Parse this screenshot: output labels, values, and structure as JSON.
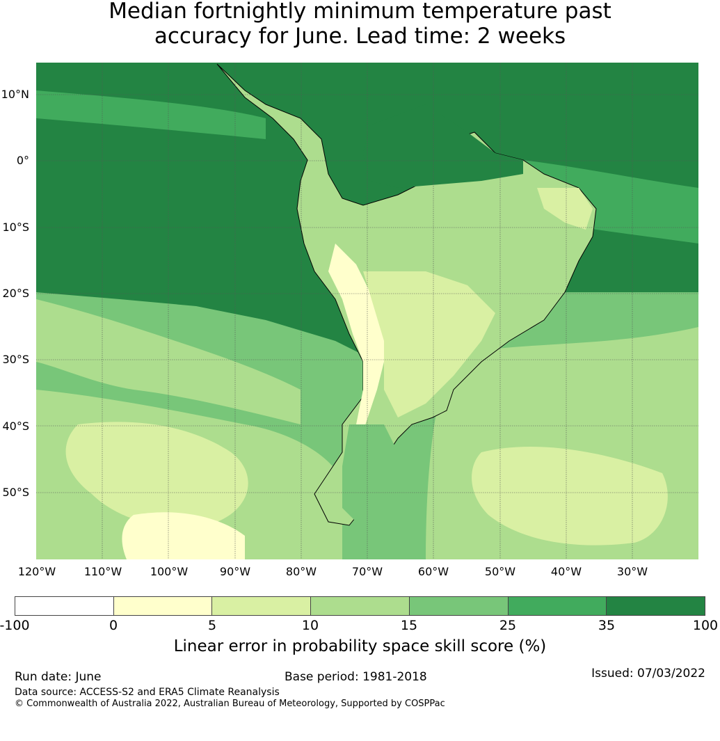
{
  "title": {
    "line1": "Median fortnightly minimum temperature past",
    "line2": "accuracy for June. Lead time: 2 weeks"
  },
  "map": {
    "lat_labels": [
      "10°N",
      "0°",
      "10°S",
      "20°S",
      "30°S",
      "40°S",
      "50°S"
    ],
    "lon_labels": [
      "120°W",
      "110°W",
      "100°W",
      "90°W",
      "80°W",
      "70°W",
      "60°W",
      "50°W",
      "40°W",
      "30°W"
    ],
    "region": "South America",
    "gridlines": true
  },
  "colorbar": {
    "ticks": [
      "-100",
      "0",
      "5",
      "10",
      "15",
      "25",
      "35",
      "100"
    ],
    "colors": [
      "#ffffff",
      "#ffffcc",
      "#d9f0a3",
      "#addd8e",
      "#78c679",
      "#41ab5d",
      "#238443"
    ],
    "label": "Linear error in probability space skill score (%)"
  },
  "footer": {
    "run_date": "Run date: June",
    "base_period": "Base period: 1981-2018",
    "issued": "Issued: 07/03/2022",
    "data_source": "Data source: ACCESS-S2 and ERA5 Climate Reanalysis",
    "copyright": "© Commonwealth of Australia 2022, Australian Bureau of Meteorology, Supported by COSPPac"
  }
}
